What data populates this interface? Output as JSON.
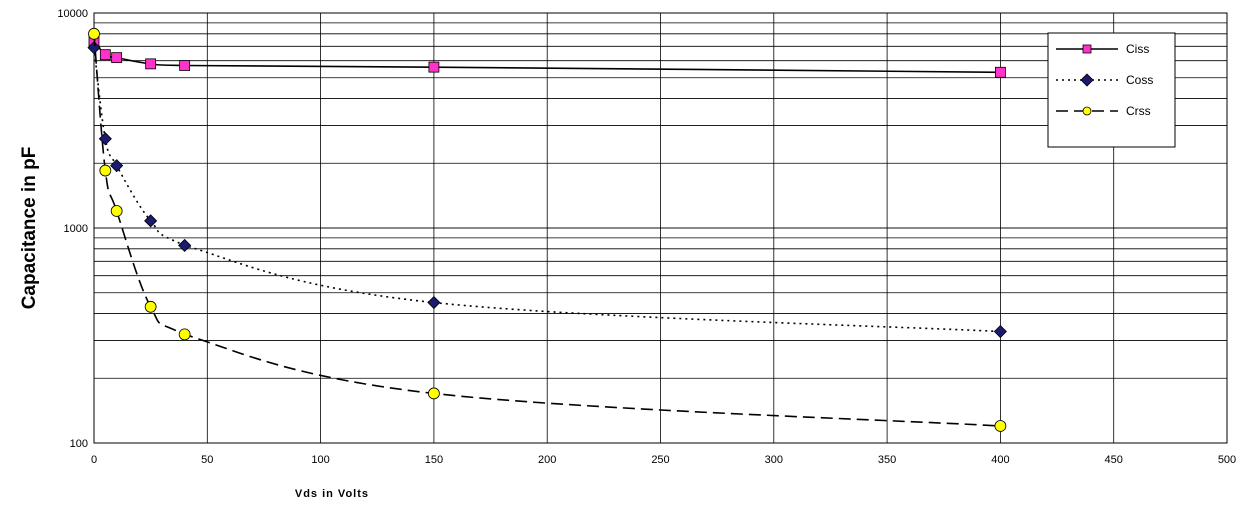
{
  "chart_data": {
    "type": "line",
    "xlabel": "Vds in Volts",
    "ylabel": "Capacitance in pF",
    "xlim": [
      0,
      500
    ],
    "ylim": [
      100,
      10000
    ],
    "yscale": "log",
    "grid": "horizontal major and minor",
    "legend_position": "top-right",
    "x_ticks": [
      0,
      50,
      100,
      150,
      200,
      250,
      300,
      350,
      400,
      450,
      500
    ],
    "x_tick_labels": [
      "0",
      "50",
      "100",
      "150",
      "200",
      "250",
      "300",
      "350",
      "400",
      "450",
      "500"
    ],
    "y_ticks": [
      100,
      1000,
      10000
    ],
    "y_tick_labels": [
      "100",
      "1000",
      "10000"
    ],
    "series": [
      {
        "name": "Ciss",
        "line_style": "solid",
        "marker": "square",
        "marker_color": "#ff33cc",
        "x": [
          0,
          5,
          10,
          25,
          40,
          150,
          400
        ],
        "y": [
          7400,
          6400,
          6200,
          5800,
          5700,
          5600,
          5300
        ]
      },
      {
        "name": "Coss",
        "line_style": "dotted",
        "marker": "diamond",
        "marker_color": "#1a1a6e",
        "x": [
          0,
          5,
          10,
          25,
          40,
          150,
          400
        ],
        "y": [
          6900,
          2600,
          1950,
          1080,
          830,
          450,
          330
        ]
      },
      {
        "name": "Crss",
        "line_style": "dashed",
        "marker": "circle",
        "marker_color": "#ffff00",
        "x": [
          0,
          5,
          10,
          25,
          40,
          150,
          400
        ],
        "y": [
          8000,
          1850,
          1200,
          430,
          320,
          170,
          120
        ]
      }
    ]
  }
}
